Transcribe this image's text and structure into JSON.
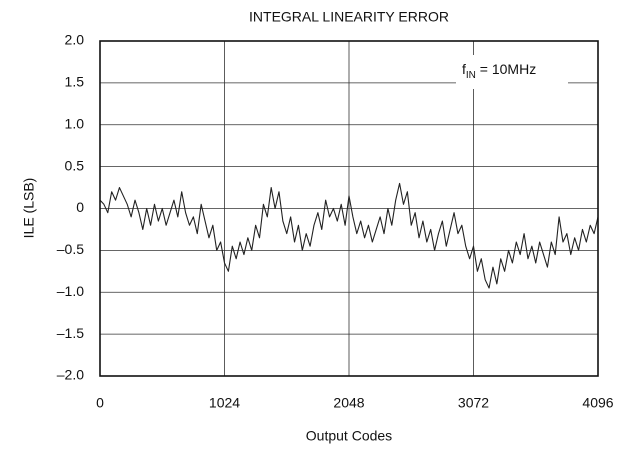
{
  "chart_data": {
    "type": "line",
    "title": "INTEGRAL LINEARITY ERROR",
    "xlabel": "Output Codes",
    "ylabel": "ILE (LSB)",
    "annotation": {
      "text": "f",
      "subscript": "IN",
      "suffix": " = 10MHz"
    },
    "xlim": [
      0,
      4096
    ],
    "xticks": [
      0,
      1024,
      2048,
      3072,
      4096
    ],
    "ylim": [
      -2,
      2
    ],
    "yticks": [
      {
        "value": -2,
        "label": "–2.0"
      },
      {
        "value": -1.5,
        "label": "–1.5"
      },
      {
        "value": -1,
        "label": "–1.0"
      },
      {
        "value": -0.5,
        "label": "–0.5"
      },
      0,
      {
        "value": 0.5,
        "label": "0.5"
      },
      {
        "value": 1,
        "label": "1.0"
      },
      {
        "value": 1.5,
        "label": "1.5"
      },
      {
        "value": 2,
        "label": "2.0"
      }
    ],
    "grid": true,
    "color": "#222222",
    "x": [
      0,
      32,
      64,
      96,
      128,
      160,
      192,
      224,
      256,
      288,
      320,
      352,
      384,
      416,
      448,
      480,
      512,
      544,
      576,
      608,
      640,
      672,
      704,
      736,
      768,
      800,
      832,
      864,
      896,
      928,
      960,
      992,
      1024,
      1056,
      1088,
      1120,
      1152,
      1184,
      1216,
      1248,
      1280,
      1312,
      1344,
      1376,
      1408,
      1440,
      1472,
      1504,
      1536,
      1568,
      1600,
      1632,
      1664,
      1696,
      1728,
      1760,
      1792,
      1824,
      1856,
      1888,
      1920,
      1952,
      1984,
      2016,
      2048,
      2080,
      2112,
      2144,
      2176,
      2208,
      2240,
      2272,
      2304,
      2336,
      2368,
      2400,
      2432,
      2464,
      2496,
      2528,
      2560,
      2592,
      2624,
      2656,
      2688,
      2720,
      2752,
      2784,
      2816,
      2848,
      2880,
      2912,
      2944,
      2976,
      3008,
      3040,
      3072,
      3104,
      3136,
      3168,
      3200,
      3232,
      3264,
      3296,
      3328,
      3360,
      3392,
      3424,
      3456,
      3488,
      3520,
      3552,
      3584,
      3616,
      3648,
      3680,
      3712,
      3744,
      3776,
      3808,
      3840,
      3872,
      3904,
      3936,
      3968,
      4000,
      4032,
      4064,
      4096
    ],
    "values": [
      0.1,
      0.05,
      -0.05,
      0.2,
      0.1,
      0.25,
      0.15,
      0.05,
      -0.1,
      0.1,
      -0.05,
      -0.25,
      0.0,
      -0.2,
      0.05,
      -0.15,
      0.0,
      -0.2,
      -0.05,
      0.1,
      -0.1,
      0.2,
      -0.05,
      -0.2,
      -0.1,
      -0.3,
      0.05,
      -0.15,
      -0.35,
      -0.2,
      -0.5,
      -0.4,
      -0.65,
      -0.75,
      -0.45,
      -0.6,
      -0.4,
      -0.55,
      -0.35,
      -0.5,
      -0.2,
      -0.35,
      0.05,
      -0.1,
      0.25,
      0.0,
      0.2,
      -0.15,
      -0.3,
      -0.1,
      -0.4,
      -0.2,
      -0.5,
      -0.3,
      -0.45,
      -0.2,
      -0.05,
      -0.25,
      0.1,
      -0.1,
      0.0,
      -0.15,
      0.05,
      -0.2,
      0.15,
      -0.1,
      -0.3,
      -0.15,
      -0.35,
      -0.2,
      -0.4,
      -0.25,
      -0.1,
      -0.3,
      0.0,
      -0.2,
      0.1,
      0.3,
      0.05,
      0.2,
      -0.2,
      -0.05,
      -0.35,
      -0.15,
      -0.4,
      -0.25,
      -0.5,
      -0.3,
      -0.15,
      -0.45,
      -0.25,
      -0.05,
      -0.3,
      -0.2,
      -0.45,
      -0.6,
      -0.45,
      -0.75,
      -0.6,
      -0.85,
      -0.95,
      -0.7,
      -0.9,
      -0.6,
      -0.75,
      -0.5,
      -0.65,
      -0.4,
      -0.55,
      -0.3,
      -0.6,
      -0.45,
      -0.65,
      -0.4,
      -0.55,
      -0.7,
      -0.4,
      -0.55,
      -0.1,
      -0.4,
      -0.3,
      -0.55,
      -0.35,
      -0.5,
      -0.25,
      -0.4,
      -0.2,
      -0.3,
      -0.1
    ]
  }
}
